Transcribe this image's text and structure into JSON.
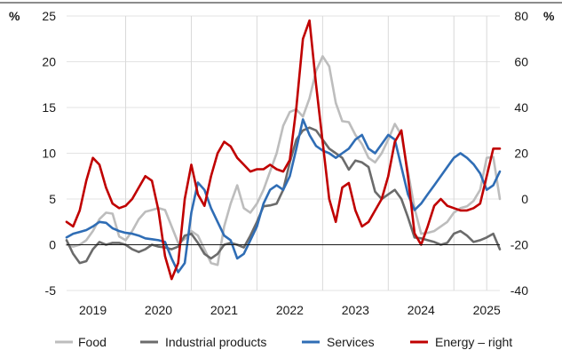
{
  "chart_data": {
    "type": "line",
    "left_unit": "%",
    "right_unit": "%",
    "y_left": {
      "min": -5,
      "max": 25,
      "ticks": [
        "25",
        "20",
        "15",
        "10",
        "5",
        "0",
        "-5"
      ],
      "tick_values": [
        25,
        20,
        15,
        10,
        5,
        0,
        -5
      ]
    },
    "y_right": {
      "min": -40,
      "max": 80,
      "ticks": [
        "80",
        "60",
        "40",
        "20",
        "0",
        "-20",
        "-40"
      ],
      "tick_values": [
        80,
        60,
        40,
        20,
        0,
        -20,
        -40
      ]
    },
    "x": {
      "start": 2018.6,
      "end": 2025.2,
      "year_labels": [
        "2019",
        "2020",
        "2021",
        "2022",
        "2023",
        "2024",
        "2025"
      ],
      "year_label_positions": [
        2019.0,
        2020.0,
        2021.0,
        2022.0,
        2023.0,
        2024.0,
        2025.0
      ],
      "year_separators": [
        2019.5,
        2020.5,
        2021.5,
        2022.5,
        2023.5,
        2024.5,
        2025.0
      ]
    },
    "grid": "horizontal",
    "legend_position": "bottom",
    "colors": {
      "food": "#bdbdbd",
      "industrial": "#6b6b6b",
      "services": "#2f6db5",
      "energy": "#c00000"
    },
    "series": [
      {
        "key": "food",
        "name": "Food",
        "axis": "left",
        "color": "#bdbdbd",
        "points": [
          [
            2018.6,
            0.0
          ],
          [
            2018.7,
            -0.2
          ],
          [
            2018.8,
            0.0
          ],
          [
            2018.9,
            0.5
          ],
          [
            2019.0,
            1.5
          ],
          [
            2019.1,
            2.8
          ],
          [
            2019.2,
            3.5
          ],
          [
            2019.3,
            3.4
          ],
          [
            2019.4,
            0.9
          ],
          [
            2019.5,
            0.5
          ],
          [
            2019.6,
            1.5
          ],
          [
            2019.7,
            2.8
          ],
          [
            2019.8,
            3.6
          ],
          [
            2019.9,
            3.8
          ],
          [
            2020.0,
            4.0
          ],
          [
            2020.1,
            3.8
          ],
          [
            2020.2,
            2.0
          ],
          [
            2020.3,
            0.2
          ],
          [
            2020.4,
            0.6
          ],
          [
            2020.5,
            1.5
          ],
          [
            2020.6,
            1.0
          ],
          [
            2020.7,
            -0.5
          ],
          [
            2020.8,
            -2.0
          ],
          [
            2020.9,
            -2.2
          ],
          [
            2021.0,
            2.0
          ],
          [
            2021.1,
            4.5
          ],
          [
            2021.2,
            6.5
          ],
          [
            2021.3,
            4.0
          ],
          [
            2021.4,
            3.5
          ],
          [
            2021.5,
            4.5
          ],
          [
            2021.6,
            6.0
          ],
          [
            2021.7,
            8.0
          ],
          [
            2021.8,
            10.0
          ],
          [
            2021.9,
            13.0
          ],
          [
            2022.0,
            14.5
          ],
          [
            2022.1,
            14.8
          ],
          [
            2022.2,
            14.0
          ],
          [
            2022.3,
            16.0
          ],
          [
            2022.4,
            19.0
          ],
          [
            2022.5,
            20.6
          ],
          [
            2022.6,
            19.5
          ],
          [
            2022.7,
            15.5
          ],
          [
            2022.8,
            13.5
          ],
          [
            2022.9,
            13.4
          ],
          [
            2023.0,
            12.0
          ],
          [
            2023.1,
            11.0
          ],
          [
            2023.2,
            9.5
          ],
          [
            2023.3,
            9.0
          ],
          [
            2023.4,
            10.0
          ],
          [
            2023.5,
            11.5
          ],
          [
            2023.6,
            13.2
          ],
          [
            2023.7,
            12.0
          ],
          [
            2023.8,
            8.0
          ],
          [
            2023.9,
            4.0
          ],
          [
            2024.0,
            1.2
          ],
          [
            2024.1,
            1.3
          ],
          [
            2024.2,
            1.5
          ],
          [
            2024.3,
            2.0
          ],
          [
            2024.4,
            2.5
          ],
          [
            2024.5,
            3.5
          ],
          [
            2024.6,
            4.0
          ],
          [
            2024.7,
            4.2
          ],
          [
            2024.8,
            4.8
          ],
          [
            2024.9,
            6.0
          ],
          [
            2025.0,
            9.5
          ],
          [
            2025.1,
            9.6
          ],
          [
            2025.2,
            5.0
          ]
        ]
      },
      {
        "key": "industrial",
        "name": "Industrial products",
        "axis": "left",
        "color": "#6b6b6b",
        "points": [
          [
            2018.6,
            0.5
          ],
          [
            2018.7,
            -1.0
          ],
          [
            2018.8,
            -2.0
          ],
          [
            2018.9,
            -1.8
          ],
          [
            2019.0,
            -0.5
          ],
          [
            2019.1,
            0.3
          ],
          [
            2019.2,
            0.0
          ],
          [
            2019.3,
            0.2
          ],
          [
            2019.4,
            0.2
          ],
          [
            2019.5,
            0.0
          ],
          [
            2019.6,
            -0.5
          ],
          [
            2019.7,
            -0.8
          ],
          [
            2019.8,
            -0.5
          ],
          [
            2019.9,
            0.0
          ],
          [
            2020.0,
            -0.2
          ],
          [
            2020.1,
            -0.3
          ],
          [
            2020.2,
            -0.5
          ],
          [
            2020.3,
            -0.2
          ],
          [
            2020.4,
            1.0
          ],
          [
            2020.5,
            1.2
          ],
          [
            2020.6,
            0.2
          ],
          [
            2020.7,
            -1.0
          ],
          [
            2020.8,
            -1.5
          ],
          [
            2020.9,
            -1.0
          ],
          [
            2021.0,
            0.0
          ],
          [
            2021.1,
            0.2
          ],
          [
            2021.2,
            0.0
          ],
          [
            2021.3,
            -0.3
          ],
          [
            2021.4,
            1.0
          ],
          [
            2021.5,
            2.5
          ],
          [
            2021.6,
            4.2
          ],
          [
            2021.7,
            4.3
          ],
          [
            2021.8,
            4.5
          ],
          [
            2021.9,
            6.0
          ],
          [
            2022.0,
            9.0
          ],
          [
            2022.1,
            11.5
          ],
          [
            2022.2,
            12.5
          ],
          [
            2022.3,
            12.8
          ],
          [
            2022.4,
            12.5
          ],
          [
            2022.5,
            11.5
          ],
          [
            2022.6,
            10.5
          ],
          [
            2022.7,
            10.0
          ],
          [
            2022.8,
            9.5
          ],
          [
            2022.9,
            8.2
          ],
          [
            2023.0,
            9.2
          ],
          [
            2023.1,
            9.0
          ],
          [
            2023.2,
            8.5
          ],
          [
            2023.3,
            5.8
          ],
          [
            2023.4,
            5.0
          ],
          [
            2023.5,
            5.5
          ],
          [
            2023.6,
            6.0
          ],
          [
            2023.7,
            5.0
          ],
          [
            2023.8,
            3.0
          ],
          [
            2023.9,
            0.8
          ],
          [
            2024.0,
            0.7
          ],
          [
            2024.1,
            0.5
          ],
          [
            2024.2,
            0.3
          ],
          [
            2024.3,
            0.0
          ],
          [
            2024.4,
            0.2
          ],
          [
            2024.5,
            1.2
          ],
          [
            2024.6,
            1.5
          ],
          [
            2024.7,
            1.0
          ],
          [
            2024.8,
            0.3
          ],
          [
            2024.9,
            0.5
          ],
          [
            2025.0,
            0.8
          ],
          [
            2025.1,
            1.2
          ],
          [
            2025.2,
            -0.5
          ]
        ]
      },
      {
        "key": "services",
        "name": "Services",
        "axis": "left",
        "color": "#2f6db5",
        "points": [
          [
            2018.6,
            0.8
          ],
          [
            2018.7,
            1.2
          ],
          [
            2018.8,
            1.4
          ],
          [
            2018.9,
            1.6
          ],
          [
            2019.0,
            2.0
          ],
          [
            2019.1,
            2.5
          ],
          [
            2019.2,
            2.4
          ],
          [
            2019.3,
            1.8
          ],
          [
            2019.4,
            1.5
          ],
          [
            2019.5,
            1.3
          ],
          [
            2019.6,
            1.2
          ],
          [
            2019.7,
            1.0
          ],
          [
            2019.8,
            0.7
          ],
          [
            2019.9,
            0.6
          ],
          [
            2020.0,
            0.5
          ],
          [
            2020.1,
            0.3
          ],
          [
            2020.2,
            -1.5
          ],
          [
            2020.3,
            -3.0
          ],
          [
            2020.4,
            -2.0
          ],
          [
            2020.5,
            3.5
          ],
          [
            2020.6,
            6.8
          ],
          [
            2020.7,
            6.0
          ],
          [
            2020.8,
            4.0
          ],
          [
            2020.9,
            2.5
          ],
          [
            2021.0,
            1.0
          ],
          [
            2021.1,
            0.5
          ],
          [
            2021.2,
            -1.5
          ],
          [
            2021.3,
            -1.0
          ],
          [
            2021.4,
            0.5
          ],
          [
            2021.5,
            2.0
          ],
          [
            2021.6,
            4.5
          ],
          [
            2021.7,
            6.0
          ],
          [
            2021.8,
            6.5
          ],
          [
            2021.9,
            6.0
          ],
          [
            2022.0,
            7.5
          ],
          [
            2022.1,
            10.5
          ],
          [
            2022.2,
            13.7
          ],
          [
            2022.3,
            12.0
          ],
          [
            2022.4,
            10.8
          ],
          [
            2022.5,
            10.3
          ],
          [
            2022.6,
            10.0
          ],
          [
            2022.7,
            9.5
          ],
          [
            2022.8,
            10.0
          ],
          [
            2022.9,
            10.5
          ],
          [
            2023.0,
            11.5
          ],
          [
            2023.1,
            12.0
          ],
          [
            2023.2,
            10.5
          ],
          [
            2023.3,
            10.0
          ],
          [
            2023.4,
            11.0
          ],
          [
            2023.5,
            12.0
          ],
          [
            2023.6,
            11.5
          ],
          [
            2023.7,
            8.5
          ],
          [
            2023.8,
            5.5
          ],
          [
            2023.9,
            3.8
          ],
          [
            2024.0,
            4.5
          ],
          [
            2024.1,
            5.5
          ],
          [
            2024.2,
            6.5
          ],
          [
            2024.3,
            7.5
          ],
          [
            2024.4,
            8.5
          ],
          [
            2024.5,
            9.5
          ],
          [
            2024.6,
            10.0
          ],
          [
            2024.7,
            9.5
          ],
          [
            2024.8,
            8.8
          ],
          [
            2024.9,
            7.8
          ],
          [
            2025.0,
            6.0
          ],
          [
            2025.1,
            6.5
          ],
          [
            2025.2,
            8.0
          ]
        ]
      },
      {
        "key": "energy",
        "name": "Energy – right",
        "axis": "right",
        "color": "#c00000",
        "points": [
          [
            2018.6,
            -10.0
          ],
          [
            2018.7,
            -12.0
          ],
          [
            2018.8,
            -5.0
          ],
          [
            2018.9,
            8.0
          ],
          [
            2019.0,
            18.0
          ],
          [
            2019.1,
            15.0
          ],
          [
            2019.2,
            5.0
          ],
          [
            2019.3,
            -2.0
          ],
          [
            2019.4,
            -4.0
          ],
          [
            2019.5,
            -3.0
          ],
          [
            2019.6,
            0.0
          ],
          [
            2019.7,
            5.0
          ],
          [
            2019.8,
            10.0
          ],
          [
            2019.9,
            8.0
          ],
          [
            2020.0,
            -5.0
          ],
          [
            2020.1,
            -25.0
          ],
          [
            2020.2,
            -35.0
          ],
          [
            2020.3,
            -28.0
          ],
          [
            2020.4,
            0.0
          ],
          [
            2020.5,
            15.0
          ],
          [
            2020.6,
            2.0
          ],
          [
            2020.7,
            -3.0
          ],
          [
            2020.8,
            10.0
          ],
          [
            2020.9,
            20.0
          ],
          [
            2021.0,
            25.0
          ],
          [
            2021.1,
            23.0
          ],
          [
            2021.2,
            18.0
          ],
          [
            2021.3,
            15.0
          ],
          [
            2021.4,
            12.0
          ],
          [
            2021.5,
            13.0
          ],
          [
            2021.6,
            13.0
          ],
          [
            2021.7,
            15.0
          ],
          [
            2021.8,
            13.0
          ],
          [
            2021.9,
            12.0
          ],
          [
            2022.0,
            17.0
          ],
          [
            2022.1,
            40.0
          ],
          [
            2022.2,
            70.0
          ],
          [
            2022.3,
            78.0
          ],
          [
            2022.4,
            50.0
          ],
          [
            2022.5,
            25.0
          ],
          [
            2022.6,
            0.0
          ],
          [
            2022.7,
            -10.0
          ],
          [
            2022.8,
            5.0
          ],
          [
            2022.9,
            7.0
          ],
          [
            2023.0,
            -5.0
          ],
          [
            2023.1,
            -12.0
          ],
          [
            2023.2,
            -10.0
          ],
          [
            2023.3,
            -5.0
          ],
          [
            2023.4,
            0.0
          ],
          [
            2023.5,
            10.0
          ],
          [
            2023.6,
            25.0
          ],
          [
            2023.7,
            30.0
          ],
          [
            2023.8,
            10.0
          ],
          [
            2023.9,
            -15.0
          ],
          [
            2024.0,
            -20.0
          ],
          [
            2024.1,
            -12.0
          ],
          [
            2024.2,
            -3.0
          ],
          [
            2024.3,
            0.0
          ],
          [
            2024.4,
            -3.0
          ],
          [
            2024.5,
            -4.0
          ],
          [
            2024.6,
            -5.0
          ],
          [
            2024.7,
            -5.0
          ],
          [
            2024.8,
            -4.0
          ],
          [
            2024.9,
            -2.0
          ],
          [
            2025.0,
            10.0
          ],
          [
            2025.1,
            22.0
          ],
          [
            2025.2,
            22.0
          ]
        ]
      }
    ]
  }
}
